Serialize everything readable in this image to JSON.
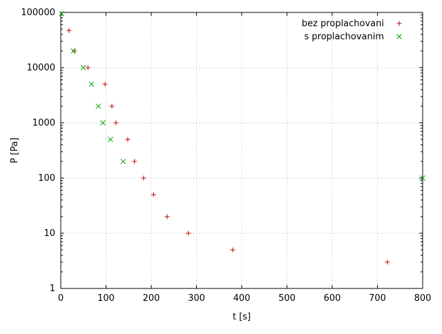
{
  "chart_data": {
    "type": "scatter",
    "title": "",
    "xlabel": "t [s]",
    "ylabel": "P [Pa]",
    "xlim": [
      0,
      800
    ],
    "ylim": [
      1,
      100000
    ],
    "y_scale": "log",
    "x_ticks": [
      0,
      100,
      200,
      300,
      400,
      500,
      600,
      700,
      800
    ],
    "y_ticks": [
      1,
      10,
      100,
      1000,
      10000,
      100000
    ],
    "grid": true,
    "legend_position": "top-right",
    "series": [
      {
        "name": "bez proplachovani",
        "marker": "plus",
        "color": "#c00000",
        "points": [
          [
            18,
            47000
          ],
          [
            30,
            20000
          ],
          [
            60,
            10000
          ],
          [
            98,
            5000
          ],
          [
            113,
            2000
          ],
          [
            122,
            1000
          ],
          [
            148,
            500
          ],
          [
            163,
            200
          ],
          [
            183,
            100
          ],
          [
            205,
            50
          ],
          [
            235,
            20
          ],
          [
            282,
            10
          ],
          [
            380,
            5
          ],
          [
            722,
            3
          ]
        ]
      },
      {
        "name": "s proplachovanim",
        "marker": "cross",
        "color": "#00a000",
        "points": [
          [
            2,
            95000
          ],
          [
            28,
            20000
          ],
          [
            50,
            10000
          ],
          [
            68,
            5000
          ],
          [
            83,
            2000
          ],
          [
            93,
            1000
          ],
          [
            110,
            500
          ],
          [
            138,
            200
          ],
          [
            800,
            100
          ]
        ]
      }
    ]
  },
  "style": {
    "grid_color": "#b4b4b4",
    "border_color": "#000000",
    "text_color": "#000000",
    "background": "#ffffff"
  }
}
